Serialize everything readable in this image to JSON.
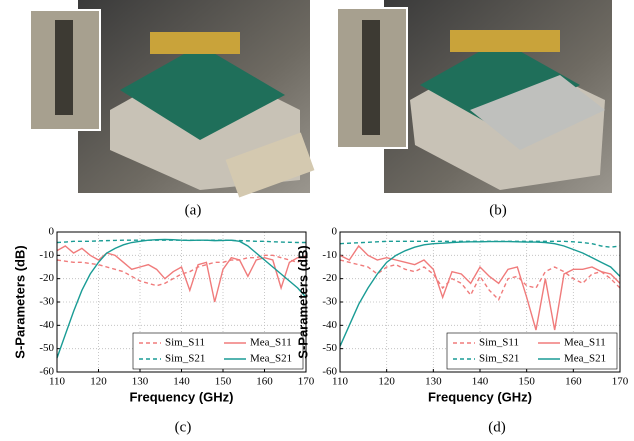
{
  "photos": [
    {
      "caption": "(a)"
    },
    {
      "caption": "(b)"
    }
  ],
  "chart_data": [
    {
      "type": "line",
      "caption": "(c)",
      "x_label": "Frequency (GHz)",
      "y_label": "S-Parameters (dB)",
      "x": [
        110,
        112,
        114,
        116,
        118,
        120,
        122,
        124,
        126,
        128,
        130,
        132,
        134,
        136,
        138,
        140,
        142,
        144,
        146,
        148,
        150,
        152,
        154,
        156,
        158,
        160,
        162,
        164,
        166,
        168,
        170
      ],
      "xlim": [
        110,
        170
      ],
      "ylim": [
        -60,
        0
      ],
      "xticks": [
        110,
        120,
        130,
        140,
        150,
        160,
        170
      ],
      "yticks": [
        0,
        -10,
        -20,
        -30,
        -40,
        -50,
        -60
      ],
      "grid": true,
      "legend": "lower right",
      "series": [
        {
          "name": "Sim_S11",
          "color": "#f07b7b",
          "linestyle": "dashed",
          "values": [
            -12,
            -12.5,
            -13,
            -13,
            -13.5,
            -14,
            -15,
            -16,
            -17,
            -19,
            -21,
            -22,
            -23,
            -22,
            -20,
            -18,
            -17,
            -15,
            -14,
            -13,
            -13,
            -12,
            -12,
            -11,
            -11,
            -10,
            -10,
            -11,
            -12,
            -13,
            -10
          ]
        },
        {
          "name": "Mea_S11",
          "color": "#f07b7b",
          "linestyle": "solid",
          "values": [
            -8,
            -6,
            -9,
            -7,
            -10,
            -12,
            -9,
            -10,
            -13,
            -16,
            -15,
            -14,
            -16,
            -20,
            -17,
            -15,
            -25,
            -14,
            -13,
            -30,
            -16,
            -11,
            -12,
            -19,
            -12,
            -11,
            -12,
            -24,
            -13,
            -11,
            -11
          ]
        },
        {
          "name": "Sim_S21",
          "color": "#1a9c95",
          "linestyle": "dashed",
          "values": [
            -4.5,
            -4.3,
            -4,
            -4,
            -4,
            -3.8,
            -3.7,
            -3.6,
            -3.5,
            -3.5,
            -3.5,
            -3.5,
            -3.5,
            -3.5,
            -3.5,
            -3.5,
            -3.5,
            -3.5,
            -3.5,
            -3.5,
            -3.5,
            -3.6,
            -3.7,
            -3.8,
            -4,
            -4,
            -4.2,
            -4.3,
            -4.4,
            -4.5,
            -4.5
          ]
        },
        {
          "name": "Mea_S21",
          "color": "#1a9c95",
          "linestyle": "solid",
          "values": [
            -54,
            -44,
            -34,
            -25,
            -18,
            -13,
            -9,
            -7,
            -5.5,
            -4.5,
            -4,
            -3.5,
            -3.3,
            -3.2,
            -3.3,
            -3.5,
            -3.6,
            -3.5,
            -3.5,
            -3.7,
            -3.6,
            -3.5,
            -4,
            -6,
            -9,
            -12,
            -15,
            -18,
            -21,
            -24,
            -28
          ]
        }
      ]
    },
    {
      "type": "line",
      "caption": "(d)",
      "x_label": "Frequency (GHz)",
      "y_label": "S-Parameters (dB)",
      "x": [
        110,
        112,
        114,
        116,
        118,
        120,
        122,
        124,
        126,
        128,
        130,
        132,
        134,
        136,
        138,
        140,
        142,
        144,
        146,
        148,
        150,
        152,
        154,
        156,
        158,
        160,
        162,
        164,
        166,
        168,
        170
      ],
      "xlim": [
        110,
        170
      ],
      "ylim": [
        -60,
        0
      ],
      "xticks": [
        110,
        120,
        130,
        140,
        150,
        160,
        170
      ],
      "yticks": [
        0,
        -10,
        -20,
        -30,
        -40,
        -50,
        -60
      ],
      "grid": true,
      "legend": "lower right",
      "series": [
        {
          "name": "Sim_S11",
          "color": "#f07b7b",
          "linestyle": "dashed",
          "values": [
            -12,
            -13,
            -14,
            -15,
            -18,
            -15,
            -14,
            -16,
            -17,
            -15,
            -18,
            -24,
            -20,
            -22,
            -27,
            -19,
            -25,
            -29,
            -20,
            -19,
            -23,
            -24,
            -17,
            -15,
            -17,
            -20,
            -22,
            -18,
            -17,
            -20,
            -24
          ]
        },
        {
          "name": "Mea_S11",
          "color": "#f07b7b",
          "linestyle": "solid",
          "values": [
            -10,
            -12,
            -6,
            -10,
            -12,
            -11,
            -12,
            -13,
            -14,
            -12,
            -16,
            -28,
            -17,
            -18,
            -22,
            -15,
            -19,
            -22,
            -16,
            -15,
            -28,
            -42,
            -20,
            -42,
            -18,
            -16,
            -16,
            -15,
            -17,
            -18,
            -22
          ]
        },
        {
          "name": "Sim_S21",
          "color": "#1a9c95",
          "linestyle": "dashed",
          "values": [
            -5,
            -4.8,
            -4.6,
            -4.4,
            -4.2,
            -4,
            -4,
            -4,
            -4,
            -4,
            -4,
            -4,
            -4,
            -4,
            -4,
            -4,
            -4,
            -4,
            -4,
            -4,
            -4,
            -4,
            -4,
            -4,
            -4,
            -4.2,
            -4.5,
            -5,
            -6,
            -6.5,
            -6
          ]
        },
        {
          "name": "Mea_S21",
          "color": "#1a9c95",
          "linestyle": "solid",
          "values": [
            -49,
            -40,
            -31,
            -24,
            -18,
            -13,
            -10,
            -8,
            -6.5,
            -5.5,
            -5,
            -4.8,
            -4.5,
            -4.3,
            -4.2,
            -4.2,
            -4.1,
            -4.1,
            -4.1,
            -4.2,
            -4.3,
            -4.3,
            -4.5,
            -5,
            -6,
            -7.5,
            -9,
            -11,
            -13,
            -15,
            -19
          ]
        }
      ]
    }
  ]
}
